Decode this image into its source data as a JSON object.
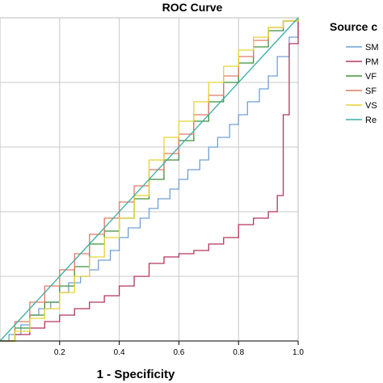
{
  "chart_data": {
    "type": "line",
    "title": "ROC Curve",
    "xlabel": "1 - Specificity",
    "ylabel": "",
    "xlim": [
      0,
      1
    ],
    "ylim": [
      0,
      1
    ],
    "x_ticks": [
      "0.2",
      "0.4",
      "0.6",
      "0.8",
      "1.0"
    ],
    "grid": true,
    "legend": {
      "title": "Source c",
      "placement": "right",
      "entries": [
        "SM",
        "PM",
        "VF",
        "SF",
        "VS",
        "Re"
      ]
    },
    "series": [
      {
        "name": "SM",
        "color": "#6fa0d6",
        "x": [
          0.0,
          0.03,
          0.07,
          0.1,
          0.13,
          0.17,
          0.2,
          0.23,
          0.27,
          0.3,
          0.33,
          0.37,
          0.4,
          0.43,
          0.47,
          0.5,
          0.53,
          0.57,
          0.6,
          0.63,
          0.67,
          0.7,
          0.73,
          0.77,
          0.8,
          0.83,
          0.87,
          0.9,
          0.93,
          0.97,
          1.0
        ],
        "y": [
          0.0,
          0.02,
          0.05,
          0.08,
          0.1,
          0.12,
          0.15,
          0.18,
          0.2,
          0.22,
          0.25,
          0.28,
          0.32,
          0.35,
          0.38,
          0.41,
          0.44,
          0.47,
          0.5,
          0.53,
          0.56,
          0.6,
          0.63,
          0.67,
          0.7,
          0.74,
          0.78,
          0.82,
          0.88,
          0.94,
          1.0
        ]
      },
      {
        "name": "PM",
        "color": "#b5365c",
        "x": [
          0.0,
          0.05,
          0.1,
          0.15,
          0.2,
          0.25,
          0.3,
          0.35,
          0.4,
          0.45,
          0.5,
          0.55,
          0.6,
          0.65,
          0.7,
          0.75,
          0.8,
          0.85,
          0.9,
          0.93,
          0.95,
          0.97,
          1.0
        ],
        "y": [
          0.0,
          0.02,
          0.04,
          0.06,
          0.08,
          0.1,
          0.12,
          0.14,
          0.17,
          0.2,
          0.24,
          0.26,
          0.27,
          0.28,
          0.3,
          0.32,
          0.36,
          0.38,
          0.4,
          0.45,
          0.7,
          0.92,
          1.0
        ]
      },
      {
        "name": "VF",
        "color": "#3e8f3a",
        "x": [
          0.0,
          0.05,
          0.1,
          0.15,
          0.2,
          0.25,
          0.3,
          0.35,
          0.4,
          0.45,
          0.5,
          0.55,
          0.6,
          0.65,
          0.7,
          0.75,
          0.8,
          0.85,
          0.9,
          0.95,
          1.0
        ],
        "y": [
          0.0,
          0.04,
          0.08,
          0.12,
          0.17,
          0.23,
          0.3,
          0.34,
          0.38,
          0.44,
          0.5,
          0.56,
          0.62,
          0.68,
          0.74,
          0.8,
          0.86,
          0.91,
          0.96,
          0.99,
          1.0
        ]
      },
      {
        "name": "SF",
        "color": "#e07b63",
        "x": [
          0.0,
          0.05,
          0.1,
          0.15,
          0.2,
          0.25,
          0.3,
          0.35,
          0.4,
          0.45,
          0.5,
          0.55,
          0.6,
          0.65,
          0.7,
          0.75,
          0.8,
          0.85,
          0.9,
          0.95,
          1.0
        ],
        "y": [
          0.0,
          0.06,
          0.12,
          0.17,
          0.22,
          0.27,
          0.33,
          0.38,
          0.43,
          0.48,
          0.53,
          0.58,
          0.64,
          0.7,
          0.76,
          0.82,
          0.88,
          0.93,
          0.97,
          0.99,
          1.0
        ]
      },
      {
        "name": "VS",
        "color": "#e6d332",
        "x": [
          0.0,
          0.05,
          0.1,
          0.15,
          0.2,
          0.25,
          0.3,
          0.35,
          0.4,
          0.45,
          0.5,
          0.55,
          0.6,
          0.65,
          0.7,
          0.75,
          0.8,
          0.85,
          0.9,
          0.95,
          1.0
        ],
        "y": [
          0.0,
          0.03,
          0.07,
          0.1,
          0.15,
          0.2,
          0.26,
          0.32,
          0.38,
          0.45,
          0.56,
          0.63,
          0.68,
          0.74,
          0.8,
          0.85,
          0.9,
          0.94,
          0.97,
          0.99,
          1.0
        ]
      },
      {
        "name": "Re",
        "color": "#3aada4",
        "x": [
          0.0,
          1.0
        ],
        "y": [
          0.0,
          1.0
        ]
      }
    ]
  }
}
